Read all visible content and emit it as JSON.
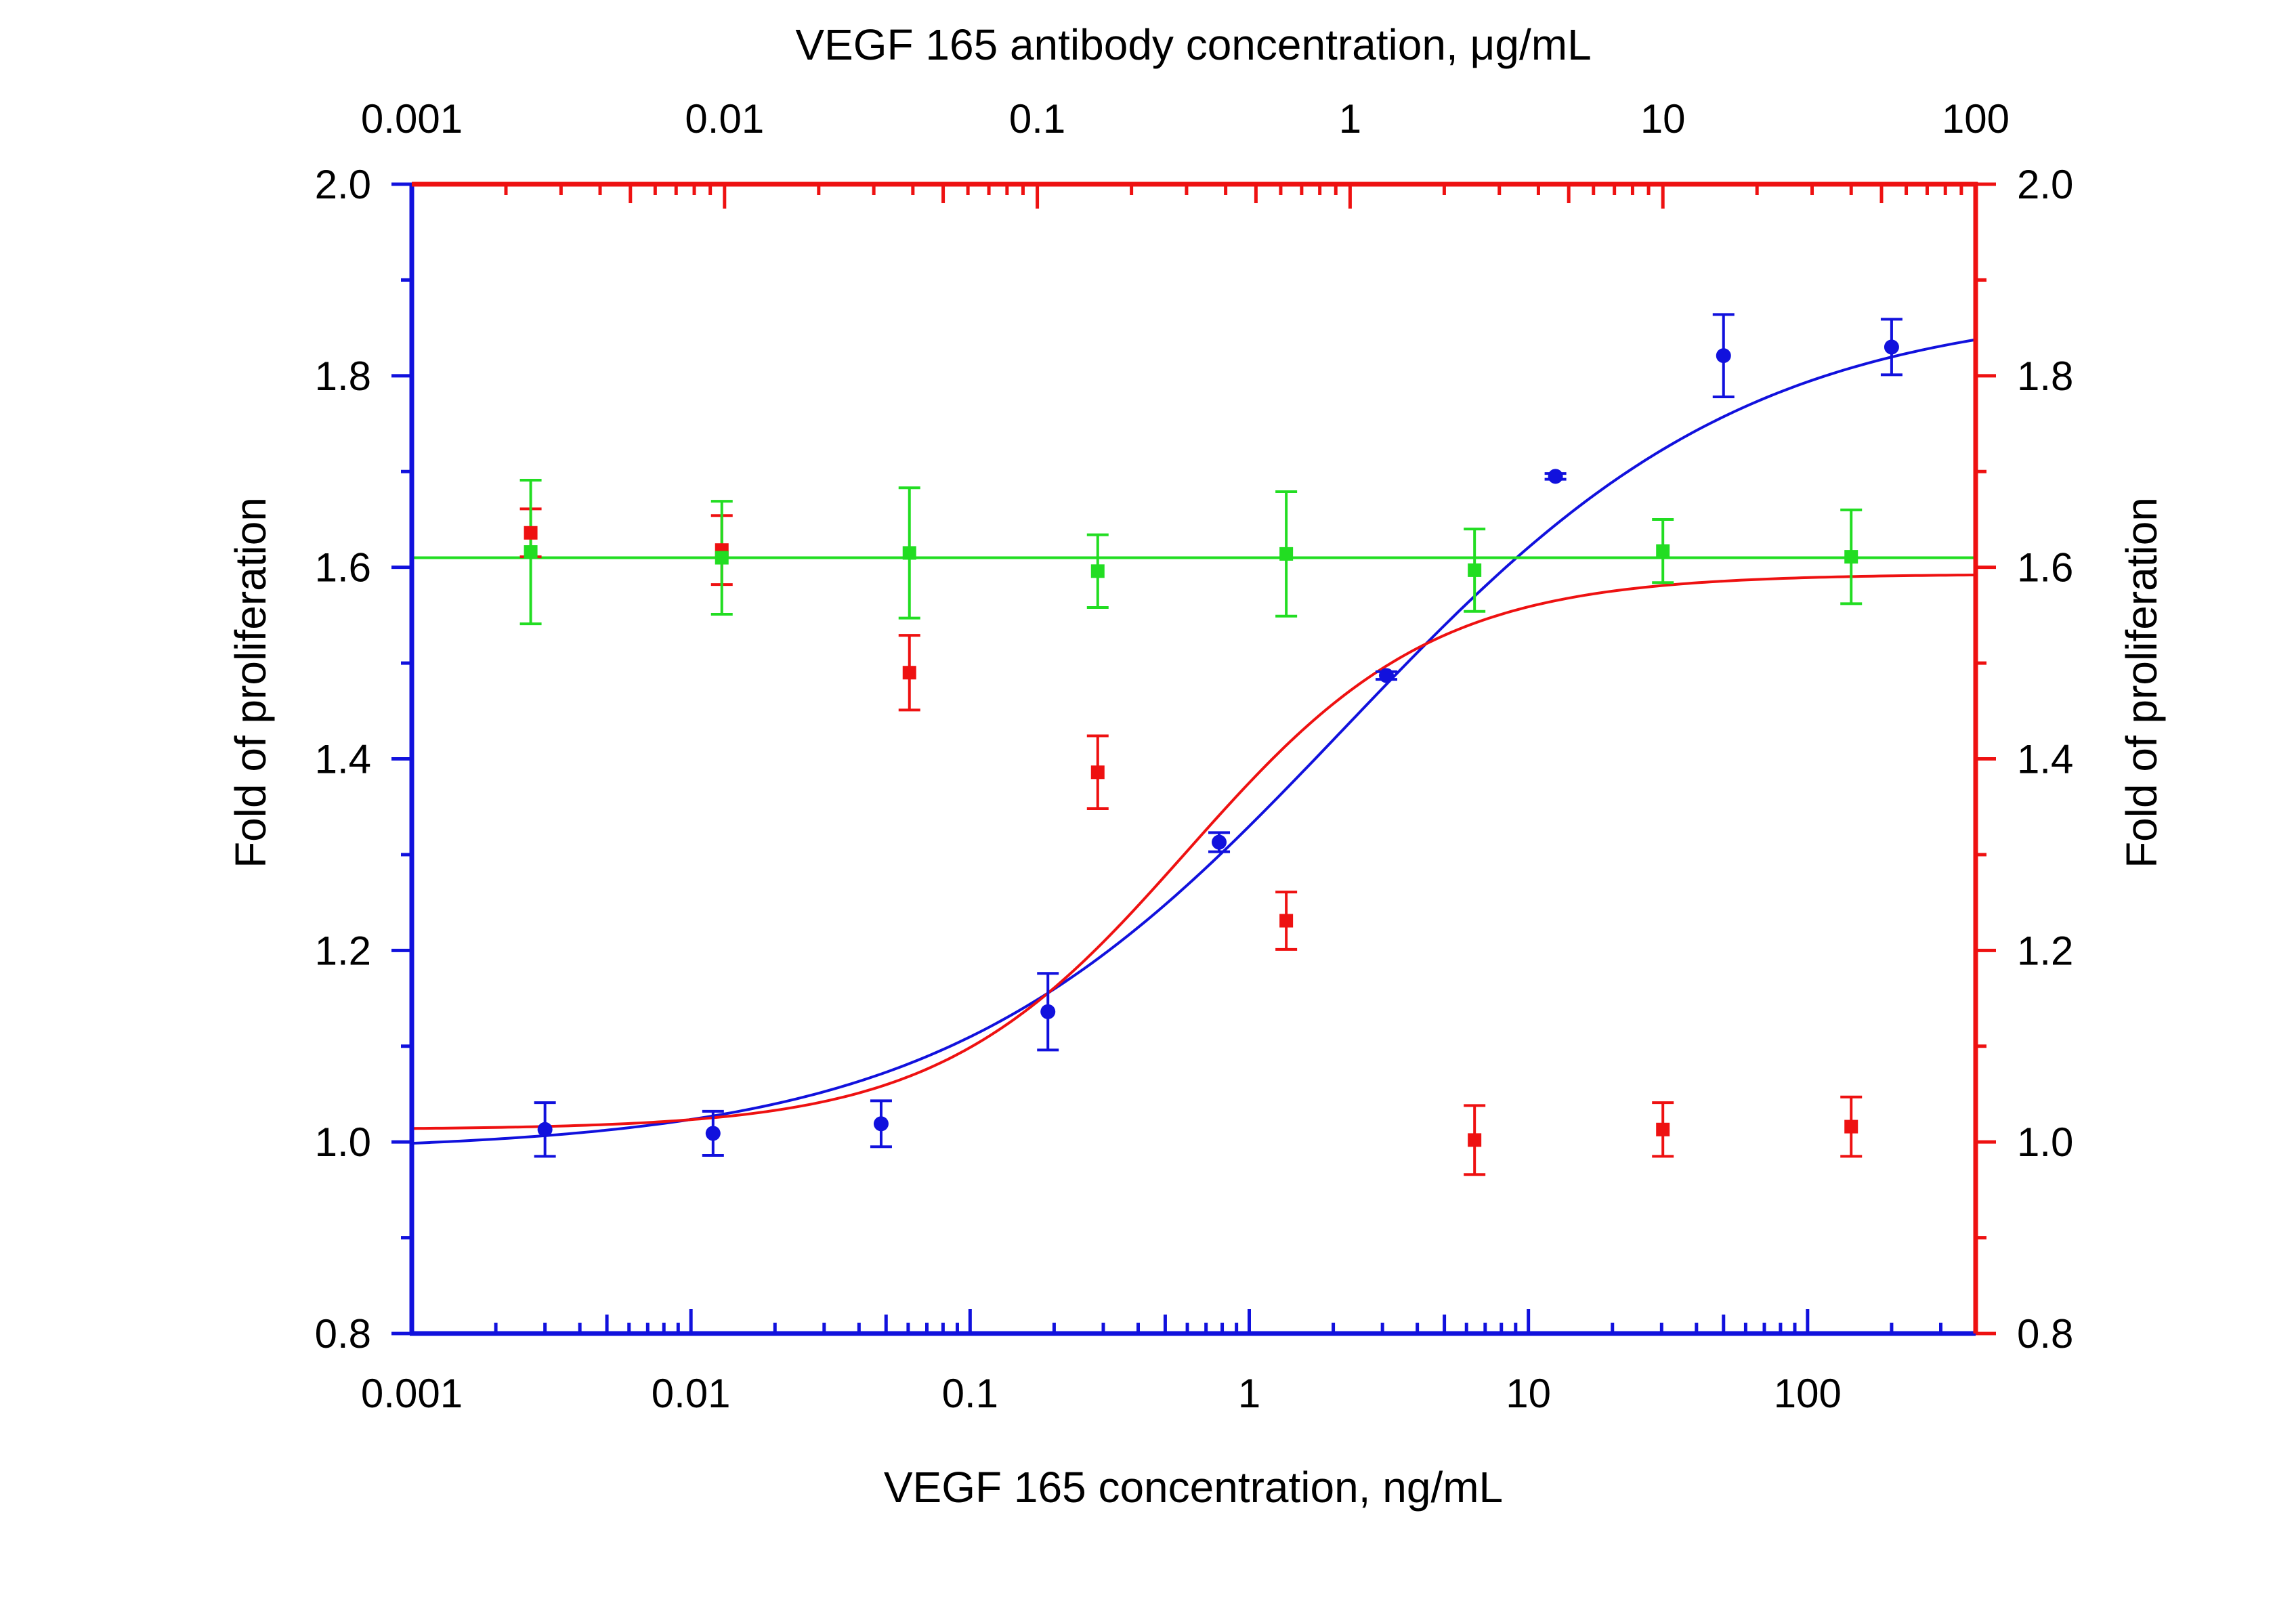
{
  "chart_data": {
    "type": "scatter",
    "top_axis": {
      "title": "VEGF 165 antibody concentration, μg/mL",
      "scale": "log",
      "range": [
        0.001,
        100
      ],
      "tick_labels": [
        "0.001",
        "0.01",
        "0.1",
        "1",
        "10",
        "100"
      ],
      "color": "#ee1111"
    },
    "bottom_axis": {
      "title": "VEGF 165 concentration, ng/mL",
      "scale": "log",
      "range": [
        0.001,
        400
      ],
      "tick_labels": [
        "0.001",
        "0.01",
        "0.1",
        "1",
        "10",
        "100"
      ],
      "color": "#1111dd"
    },
    "left_axis": {
      "title": "Fold of proliferation",
      "range": [
        0.8,
        2.0
      ],
      "tick_labels": [
        "0.8",
        "1.0",
        "1.2",
        "1.4",
        "1.6",
        "1.8",
        "2.0"
      ],
      "color": "#1111dd"
    },
    "right_axis": {
      "title": "Fold of proliferation",
      "range": [
        0.8,
        2.0
      ],
      "tick_labels": [
        "0.8",
        "1.0",
        "1.2",
        "1.4",
        "1.6",
        "1.8",
        "2.0"
      ],
      "color": "#ee1111"
    },
    "grid": false,
    "series": [
      {
        "color": "#1111dd",
        "marker": "circle",
        "x_axis": "bottom",
        "points": [
          {
            "x": 0.003,
            "y": 1.013,
            "err": 0.028
          },
          {
            "x": 0.012,
            "y": 1.009,
            "err": 0.023
          },
          {
            "x": 0.048,
            "y": 1.019,
            "err": 0.024
          },
          {
            "x": 0.19,
            "y": 1.136,
            "err": 0.04
          },
          {
            "x": 0.78,
            "y": 1.313,
            "err": 0.01
          },
          {
            "x": 3.1,
            "y": 1.487,
            "err": 0.004
          },
          {
            "x": 12.5,
            "y": 1.695,
            "err": 0.003
          },
          {
            "x": 50,
            "y": 1.821,
            "err": 0.043
          },
          {
            "x": 200,
            "y": 1.83,
            "err": 0.029
          }
        ],
        "fit": {
          "bottom": 0.99,
          "top": 1.875,
          "ec50": 2.2,
          "hill": 0.6,
          "x_from": 0.001,
          "x_to": 400
        }
      },
      {
        "color": "#ee1111",
        "marker": "square",
        "x_axis": "top",
        "points": [
          {
            "x": 0.0024,
            "y": 1.636,
            "err": 0.025
          },
          {
            "x": 0.0098,
            "y": 1.618,
            "err": 0.036
          },
          {
            "x": 0.039,
            "y": 1.49,
            "err": 0.039
          },
          {
            "x": 0.156,
            "y": 1.386,
            "err": 0.038
          },
          {
            "x": 0.625,
            "y": 1.231,
            "err": 0.03
          },
          {
            "x": 2.5,
            "y": 1.002,
            "err": 0.036
          },
          {
            "x": 10,
            "y": 1.013,
            "err": 0.028
          },
          {
            "x": 40,
            "y": 1.016,
            "err": 0.031
          }
        ],
        "fit": {
          "bottom": 1.013,
          "top": 1.593,
          "ec50": 0.3,
          "hill": 1.1,
          "x_from": 0.001,
          "x_to": 100
        }
      },
      {
        "color": "#22dd22",
        "marker": "square",
        "x_axis": "top",
        "points": [
          {
            "x": 0.0024,
            "y": 1.616,
            "err": 0.075
          },
          {
            "x": 0.0098,
            "y": 1.61,
            "err": 0.059
          },
          {
            "x": 0.039,
            "y": 1.615,
            "err": 0.068
          },
          {
            "x": 0.156,
            "y": 1.596,
            "err": 0.038
          },
          {
            "x": 0.625,
            "y": 1.614,
            "err": 0.065
          },
          {
            "x": 2.5,
            "y": 1.597,
            "err": 0.043
          },
          {
            "x": 10,
            "y": 1.617,
            "err": 0.033
          },
          {
            "x": 40,
            "y": 1.611,
            "err": 0.049
          }
        ],
        "fit": {
          "constant": 1.61,
          "x_from": 0.001,
          "x_to": 100
        }
      }
    ]
  }
}
